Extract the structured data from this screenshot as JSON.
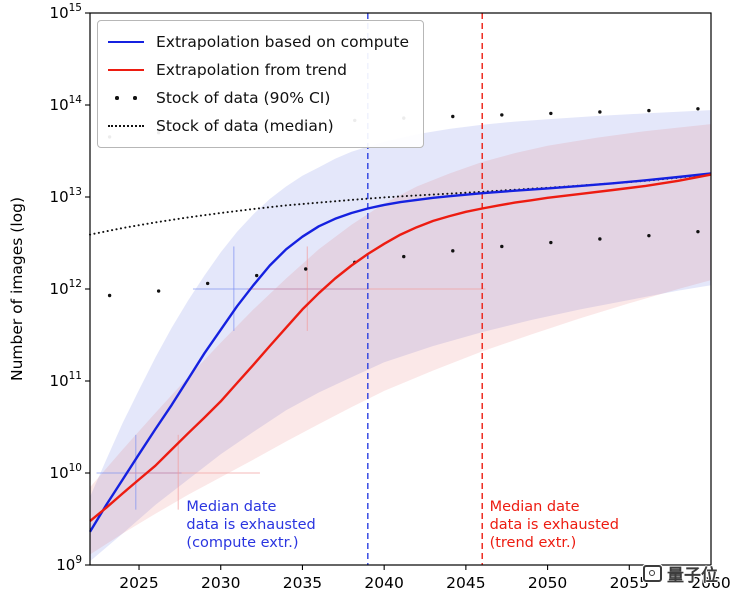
{
  "watermark": {
    "text": "量子位"
  },
  "chart_data": {
    "type": "line",
    "title": "",
    "xlabel": "",
    "ylabel": "Number of images (log)",
    "xlim": [
      2022,
      2060
    ],
    "y_log10_range": [
      9,
      15
    ],
    "xticks": [
      2025,
      2030,
      2035,
      2040,
      2045,
      2050,
      2055,
      2060
    ],
    "ytick_exponents": [
      9,
      10,
      11,
      12,
      13,
      14,
      15
    ],
    "grid": false,
    "legend": {
      "position": "upper-left",
      "entries": [
        {
          "swatch": "solid",
          "color": "#1521e0",
          "label": "Extrapolation based on compute"
        },
        {
          "swatch": "solid",
          "color": "#ed1c11",
          "label": "Extrapolation from trend"
        },
        {
          "swatch": "dots",
          "color": "#111111",
          "label": "Stock of data (90% CI)"
        },
        {
          "swatch": "dotted",
          "color": "#111111",
          "label": "Stock of data (median)"
        }
      ]
    },
    "series": [
      {
        "name": "Extrapolation based on compute",
        "type": "line",
        "color": "#1521e0",
        "width": 2.4,
        "points": [
          [
            2022,
            2300000000.0
          ],
          [
            2023,
            4500000000.0
          ],
          [
            2024,
            8500000000.0
          ],
          [
            2025,
            16000000000.0
          ],
          [
            2026,
            30000000000.0
          ],
          [
            2027,
            55000000000.0
          ],
          [
            2028,
            105000000000.0
          ],
          [
            2029,
            200000000000.0
          ],
          [
            2030,
            360000000000.0
          ],
          [
            2031,
            650000000000.0
          ],
          [
            2032,
            1100000000000.0
          ],
          [
            2033,
            1800000000000.0
          ],
          [
            2034,
            2700000000000.0
          ],
          [
            2035,
            3700000000000.0
          ],
          [
            2036,
            4800000000000.0
          ],
          [
            2037,
            5800000000000.0
          ],
          [
            2038,
            6700000000000.0
          ],
          [
            2039,
            7500000000000.0
          ],
          [
            2040,
            8200000000000.0
          ],
          [
            2041,
            8800000000000.0
          ],
          [
            2042,
            9300000000000.0
          ],
          [
            2043,
            9800000000000.0
          ],
          [
            2044,
            10200000000000.0
          ],
          [
            2045,
            10600000000000.0
          ],
          [
            2046,
            11000000000000.0
          ],
          [
            2048,
            11700000000000.0
          ],
          [
            2050,
            12400000000000.0
          ],
          [
            2052,
            13200000000000.0
          ],
          [
            2054,
            14100000000000.0
          ],
          [
            2056,
            15200000000000.0
          ],
          [
            2058,
            16500000000000.0
          ],
          [
            2060,
            18000000000000.0
          ]
        ]
      },
      {
        "name": "Extrapolation from trend",
        "type": "line",
        "color": "#ed1c11",
        "width": 2.4,
        "points": [
          [
            2022,
            3000000000.0
          ],
          [
            2023,
            4200000000.0
          ],
          [
            2024,
            6000000000.0
          ],
          [
            2025,
            8500000000.0
          ],
          [
            2026,
            12000000000.0
          ],
          [
            2027,
            18000000000.0
          ],
          [
            2028,
            27000000000.0
          ],
          [
            2029,
            40000000000.0
          ],
          [
            2030,
            60000000000.0
          ],
          [
            2031,
            95000000000.0
          ],
          [
            2032,
            150000000000.0
          ],
          [
            2033,
            240000000000.0
          ],
          [
            2034,
            380000000000.0
          ],
          [
            2035,
            600000000000.0
          ],
          [
            2036,
            900000000000.0
          ],
          [
            2037,
            1300000000000.0
          ],
          [
            2038,
            1800000000000.0
          ],
          [
            2039,
            2400000000000.0
          ],
          [
            2040,
            3100000000000.0
          ],
          [
            2041,
            3900000000000.0
          ],
          [
            2042,
            4700000000000.0
          ],
          [
            2043,
            5500000000000.0
          ],
          [
            2044,
            6200000000000.0
          ],
          [
            2045,
            6900000000000.0
          ],
          [
            2046,
            7500000000000.0
          ],
          [
            2047,
            8100000000000.0
          ],
          [
            2048,
            8700000000000.0
          ],
          [
            2049,
            9200000000000.0
          ],
          [
            2050,
            9800000000000.0
          ],
          [
            2052,
            10800000000000.0
          ],
          [
            2054,
            11900000000000.0
          ],
          [
            2056,
            13200000000000.0
          ],
          [
            2058,
            15000000000000.0
          ],
          [
            2060,
            17500000000000.0
          ]
        ]
      },
      {
        "name": "Stock of data (median)",
        "type": "dotted-line",
        "color": "#111111",
        "width": 2,
        "points": [
          [
            2022,
            3900000000000.0
          ],
          [
            2024,
            4600000000000.0
          ],
          [
            2026,
            5300000000000.0
          ],
          [
            2028,
            6000000000000.0
          ],
          [
            2030,
            6700000000000.0
          ],
          [
            2032,
            7400000000000.0
          ],
          [
            2034,
            8100000000000.0
          ],
          [
            2036,
            8700000000000.0
          ],
          [
            2038,
            9300000000000.0
          ],
          [
            2040,
            9900000000000.0
          ],
          [
            2042,
            10400000000000.0
          ],
          [
            2044,
            10900000000000.0
          ],
          [
            2046,
            11400000000000.0
          ],
          [
            2048,
            12000000000000.0
          ],
          [
            2050,
            12600000000000.0
          ],
          [
            2052,
            13300000000000.0
          ],
          [
            2054,
            14100000000000.0
          ],
          [
            2056,
            15000000000000.0
          ],
          [
            2058,
            16200000000000.0
          ],
          [
            2060,
            17800000000000.0
          ]
        ]
      },
      {
        "name": "Stock of data (90% CI) upper",
        "type": "scatter",
        "color": "#111111",
        "points": [
          [
            2023.2,
            45000000000000.0
          ],
          [
            2026.2,
            50000000000000.0
          ],
          [
            2029.2,
            55000000000000.0
          ],
          [
            2032.2,
            60000000000000.0
          ],
          [
            2035.2,
            64000000000000.0
          ],
          [
            2038.2,
            68000000000000.0
          ],
          [
            2041.2,
            72000000000000.0
          ],
          [
            2044.2,
            75000000000000.0
          ],
          [
            2047.2,
            78000000000000.0
          ],
          [
            2050.2,
            81000000000000.0
          ],
          [
            2053.2,
            84000000000000.0
          ],
          [
            2056.2,
            87000000000000.0
          ],
          [
            2059.2,
            91000000000000.0
          ]
        ]
      },
      {
        "name": "Stock of data (90% CI) lower",
        "type": "scatter",
        "color": "#111111",
        "points": [
          [
            2023.2,
            850000000000.0
          ],
          [
            2026.2,
            950000000000.0
          ],
          [
            2029.2,
            1150000000000.0
          ],
          [
            2032.2,
            1400000000000.0
          ],
          [
            2035.2,
            1650000000000.0
          ],
          [
            2038.2,
            1950000000000.0
          ],
          [
            2041.2,
            2250000000000.0
          ],
          [
            2044.2,
            2600000000000.0
          ],
          [
            2047.2,
            2900000000000.0
          ],
          [
            2050.2,
            3200000000000.0
          ],
          [
            2053.2,
            3500000000000.0
          ],
          [
            2056.2,
            3800000000000.0
          ],
          [
            2059.2,
            4200000000000.0
          ]
        ]
      }
    ],
    "bands": [
      {
        "name": "compute-90ci-band",
        "color": "#4055dd",
        "opacity": 0.14,
        "upper": [
          [
            2022,
            5500000000.0
          ],
          [
            2023,
            14000000000.0
          ],
          [
            2024,
            35000000000.0
          ],
          [
            2025,
            80000000000.0
          ],
          [
            2026,
            180000000000.0
          ],
          [
            2027,
            380000000000.0
          ],
          [
            2028,
            750000000000.0
          ],
          [
            2029,
            1400000000000.0
          ],
          [
            2030,
            2500000000000.0
          ],
          [
            2031,
            4200000000000.0
          ],
          [
            2032,
            6500000000000.0
          ],
          [
            2033,
            9500000000000.0
          ],
          [
            2034,
            13000000000000.0
          ],
          [
            2035,
            17000000000000.0
          ],
          [
            2036,
            21000000000000.0
          ],
          [
            2037,
            26000000000000.0
          ],
          [
            2038,
            31000000000000.0
          ],
          [
            2040,
            40000000000000.0
          ],
          [
            2042,
            48000000000000.0
          ],
          [
            2044,
            55000000000000.0
          ],
          [
            2046,
            61000000000000.0
          ],
          [
            2048,
            66000000000000.0
          ],
          [
            2050,
            70000000000000.0
          ],
          [
            2053,
            76000000000000.0
          ],
          [
            2056,
            81000000000000.0
          ],
          [
            2060,
            88000000000000.0
          ]
        ],
        "lower": [
          [
            2022,
            1100000000.0
          ],
          [
            2024,
            2200000000.0
          ],
          [
            2026,
            4500000000.0
          ],
          [
            2028,
            8500000000.0
          ],
          [
            2030,
            16000000000.0
          ],
          [
            2032,
            28000000000.0
          ],
          [
            2034,
            48000000000.0
          ],
          [
            2036,
            75000000000.0
          ],
          [
            2038,
            110000000000.0
          ],
          [
            2040,
            160000000000.0
          ],
          [
            2043,
            240000000000.0
          ],
          [
            2046,
            340000000000.0
          ],
          [
            2049,
            460000000000.0
          ],
          [
            2052,
            600000000000.0
          ],
          [
            2055,
            760000000000.0
          ],
          [
            2058,
            960000000000.0
          ],
          [
            2060,
            1100000000000.0
          ]
        ]
      },
      {
        "name": "trend-90ci-band",
        "color": "#dd4040",
        "opacity": 0.12,
        "upper": [
          [
            2022,
            7000000000.0
          ],
          [
            2024,
            18000000000.0
          ],
          [
            2026,
            45000000000.0
          ],
          [
            2028,
            110000000000.0
          ],
          [
            2030,
            260000000000.0
          ],
          [
            2032,
            600000000000.0
          ],
          [
            2034,
            1300000000000.0
          ],
          [
            2036,
            2700000000000.0
          ],
          [
            2038,
            5000000000000.0
          ],
          [
            2040,
            8500000000000.0
          ],
          [
            2042,
            13000000000000.0
          ],
          [
            2044,
            18000000000000.0
          ],
          [
            2046,
            24000000000000.0
          ],
          [
            2048,
            30000000000000.0
          ],
          [
            2050,
            36000000000000.0
          ],
          [
            2053,
            44000000000000.0
          ],
          [
            2056,
            52000000000000.0
          ],
          [
            2060,
            62000000000000.0
          ]
        ],
        "lower": [
          [
            2022,
            1300000000.0
          ],
          [
            2024,
            2200000000.0
          ],
          [
            2026,
            3600000000.0
          ],
          [
            2028,
            5800000000.0
          ],
          [
            2030,
            9000000000.0
          ],
          [
            2032,
            14000000000.0
          ],
          [
            2034,
            22000000000.0
          ],
          [
            2036,
            34000000000.0
          ],
          [
            2038,
            52000000000.0
          ],
          [
            2040,
            78000000000.0
          ],
          [
            2043,
            130000000000.0
          ],
          [
            2046,
            210000000000.0
          ],
          [
            2049,
            320000000000.0
          ],
          [
            2052,
            480000000000.0
          ],
          [
            2055,
            700000000000.0
          ],
          [
            2058,
            1000000000000.0
          ],
          [
            2060,
            1250000000000.0
          ]
        ]
      }
    ],
    "vlines": [
      {
        "name": "compute-exhaustion-vline",
        "x": 2039,
        "color": "#2a3fe0",
        "style": "dashed"
      },
      {
        "name": "trend-exhaustion-vline",
        "x": 2046,
        "color": "#ed1c11",
        "style": "dashed"
      }
    ],
    "crosshairs": [
      {
        "name": "compute-ci-bar-h1",
        "type": "h",
        "y": 10000000000.0,
        "x0": 2022.4,
        "x1": 2027.6,
        "color": "#7b8ff0"
      },
      {
        "name": "compute-ci-bar-v1",
        "type": "v",
        "x": 2024.8,
        "y0": 4000000000.0,
        "y1": 26000000000.0,
        "color": "#7b8ff0"
      },
      {
        "name": "compute-ci-bar-h2",
        "type": "h",
        "y": 1000000000000.0,
        "x0": 2028.3,
        "x1": 2039.0,
        "color": "#7b8ff0"
      },
      {
        "name": "compute-ci-bar-v2",
        "type": "v",
        "x": 2030.8,
        "y0": 350000000000.0,
        "y1": 2900000000000.0,
        "color": "#7b8ff0"
      },
      {
        "name": "trend-ci-bar-h1",
        "type": "h",
        "y": 10000000000.0,
        "x0": 2024.2,
        "x1": 2032.4,
        "color": "#f29a9a"
      },
      {
        "name": "trend-ci-bar-v1",
        "type": "v",
        "x": 2027.4,
        "y0": 4000000000.0,
        "y1": 26000000000.0,
        "color": "#f29a9a"
      },
      {
        "name": "trend-ci-bar-h2",
        "type": "h",
        "y": 1000000000000.0,
        "x0": 2031.6,
        "x1": 2046.2,
        "color": "#f29a9a"
      },
      {
        "name": "trend-ci-bar-v2",
        "type": "v",
        "x": 2035.3,
        "y0": 350000000000.0,
        "y1": 2900000000000.0,
        "color": "#f29a9a"
      }
    ],
    "annotations": [
      {
        "name": "annotation-compute",
        "text": "Median date\ndata is exhausted\n(compute extr.)",
        "color": "#2a35e0",
        "x": 2027.9,
        "y_exp": 9.73
      },
      {
        "name": "annotation-trend",
        "text": "Median date\ndata is exhausted\n(trend extr.)",
        "color": "#ed1c11",
        "x": 2046.45,
        "y_exp": 9.73
      }
    ]
  }
}
